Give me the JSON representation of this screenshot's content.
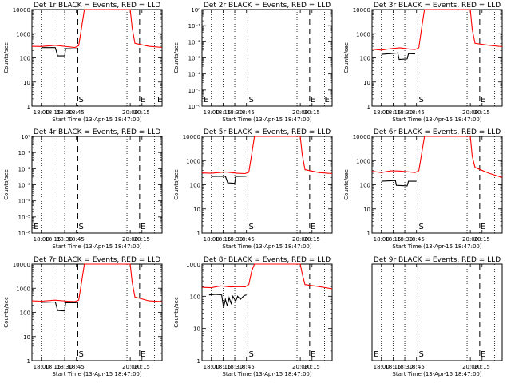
{
  "chart_data": [
    {
      "type": "line",
      "title": "Det 1r BLACK = Events, RED = LLD",
      "xlabel": "Start Time (13-Apr-15 18:47:00)",
      "ylabel": "Counts/sec",
      "yscale": "log",
      "ylim": [
        1,
        10000
      ],
      "xlim": [
        17.8,
        20.58
      ],
      "ytick_labels": [
        "1",
        "10",
        "100",
        "1000",
        "10000"
      ],
      "xtick_labels": [
        "18:00",
        "18:15",
        "18:30",
        "18:45",
        "20:00",
        "20:15"
      ],
      "dotted_x": [
        18.0,
        18.25,
        18.5,
        19.83,
        20.42
      ],
      "markers": [
        {
          "label": "S",
          "x": 18.78
        },
        {
          "label": "E",
          "x": 20.1
        },
        {
          "label": "E",
          "x": 20.58
        }
      ],
      "series": [
        {
          "color": "#000000",
          "points": [
            [
              17.8,
              null
            ],
            [
              18.0,
              265
            ],
            [
              18.3,
              265
            ],
            [
              18.35,
              120
            ],
            [
              18.5,
              120
            ],
            [
              18.52,
              240
            ],
            [
              18.72,
              235
            ],
            [
              18.78,
              240
            ]
          ]
        },
        {
          "color": "#ff0000",
          "points": [
            [
              17.8,
              300
            ],
            [
              18.0,
              295
            ],
            [
              18.3,
              330
            ],
            [
              18.55,
              290
            ],
            [
              18.72,
              270
            ],
            [
              18.8,
              320
            ],
            [
              18.86,
              1800
            ],
            [
              18.92,
              10000
            ],
            [
              19.9,
              10000
            ],
            [
              19.94,
              1800
            ],
            [
              20.0,
              400
            ],
            [
              20.3,
              300
            ],
            [
              20.58,
              270
            ]
          ]
        }
      ]
    },
    {
      "type": "line",
      "title": "Det 2r BLACK = Events, RED = LLD",
      "xlabel": "Start Time (13-Apr-15 18:47:00)",
      "ylabel": "Counts/sec",
      "yscale": "log",
      "ylim": [
        1e-06,
        1
      ],
      "ytick_labels": [
        "10⁻⁶",
        "10⁻⁵",
        "10⁻⁴",
        "10⁻³",
        "10⁻²",
        "10⁻¹",
        "10⁰"
      ],
      "xtick_labels": [
        "18:00",
        "18:15",
        "18:30",
        "18:45",
        "20:00",
        "20:15"
      ],
      "markers": [
        {
          "label": "E",
          "x": 17.82
        },
        {
          "label": "S",
          "x": 18.78
        },
        {
          "label": "E",
          "x": 20.1
        },
        {
          "label": "E",
          "x": 20.4
        }
      ],
      "series": []
    },
    {
      "type": "line",
      "title": "Det 3r BLACK = Events, RED = LLD",
      "xlabel": "Start Time (13-Apr-15 18:47:00)",
      "ylabel": "Counts/sec",
      "yscale": "log",
      "ylim": [
        1,
        10000
      ],
      "ytick_labels": [
        "1",
        "10",
        "100",
        "1000",
        "10000"
      ],
      "xtick_labels": [
        "18:00",
        "18:15",
        "18:30",
        "18:45",
        "20:00",
        "20:15"
      ],
      "markers": [
        {
          "label": "S",
          "x": 18.78
        },
        {
          "label": "E",
          "x": 20.1
        }
      ],
      "series": [
        {
          "color": "#000000",
          "points": [
            [
              17.8,
              null
            ],
            [
              18.0,
              140
            ],
            [
              18.2,
              150
            ],
            [
              18.35,
              160
            ],
            [
              18.38,
              85
            ],
            [
              18.55,
              90
            ],
            [
              18.58,
              150
            ],
            [
              18.72,
              145
            ]
          ]
        },
        {
          "color": "#ff0000",
          "points": [
            [
              17.8,
              230
            ],
            [
              18.0,
              210
            ],
            [
              18.2,
              240
            ],
            [
              18.4,
              260
            ],
            [
              18.6,
              230
            ],
            [
              18.72,
              220
            ],
            [
              18.8,
              260
            ],
            [
              18.86,
              1800
            ],
            [
              18.92,
              10000
            ],
            [
              19.9,
              10000
            ],
            [
              19.94,
              1500
            ],
            [
              20.0,
              400
            ],
            [
              20.3,
              330
            ],
            [
              20.58,
              290
            ]
          ]
        }
      ]
    },
    {
      "type": "line",
      "title": "Det 4r BLACK = Events, RED = LLD",
      "xlabel": "Start Time (13-Apr-15 18:47:00)",
      "ylabel": "Counts/sec",
      "yscale": "log",
      "ylim": [
        1e-06,
        1
      ],
      "ytick_labels": [
        "10⁻⁶",
        "10⁻⁵",
        "10⁻⁴",
        "10⁻³",
        "10⁻²",
        "10⁻¹",
        "10⁰"
      ],
      "xtick_labels": [
        "18:00",
        "18:15",
        "18:30",
        "18:45",
        "20:00",
        "20:15"
      ],
      "markers": [
        {
          "label": "E",
          "x": 17.82
        },
        {
          "label": "S",
          "x": 18.78
        },
        {
          "label": "E",
          "x": 20.1
        }
      ],
      "series": []
    },
    {
      "type": "line",
      "title": "Det 5r BLACK = Events, RED = LLD",
      "xlabel": "Start Time (13-Apr-15 18:47:00)",
      "ylabel": "Counts/sec",
      "yscale": "log",
      "ylim": [
        1,
        10000
      ],
      "ytick_labels": [
        "1",
        "10",
        "100",
        "1000",
        "10000"
      ],
      "xtick_labels": [
        "18:00",
        "18:15",
        "18:30",
        "18:45",
        "20:00",
        "20:15"
      ],
      "markers": [
        {
          "label": "S",
          "x": 18.78
        },
        {
          "label": "E",
          "x": 20.1
        }
      ],
      "series": [
        {
          "color": "#000000",
          "points": [
            [
              17.8,
              null
            ],
            [
              18.0,
              220
            ],
            [
              18.3,
              225
            ],
            [
              18.35,
              120
            ],
            [
              18.5,
              115
            ],
            [
              18.52,
              220
            ],
            [
              18.75,
              225
            ]
          ]
        },
        {
          "color": "#ff0000",
          "points": [
            [
              17.8,
              310
            ],
            [
              18.0,
              300
            ],
            [
              18.3,
              340
            ],
            [
              18.55,
              300
            ],
            [
              18.72,
              290
            ],
            [
              18.8,
              330
            ],
            [
              18.86,
              1800
            ],
            [
              18.92,
              10000
            ],
            [
              19.9,
              10000
            ],
            [
              19.94,
              1800
            ],
            [
              20.0,
              420
            ],
            [
              20.3,
              320
            ],
            [
              20.58,
              290
            ]
          ]
        }
      ]
    },
    {
      "type": "line",
      "title": "Det 6r BLACK = Events, RED = LLD",
      "xlabel": "Start Time (13-Apr-15 18:47:00)",
      "ylabel": "Counts/sec",
      "yscale": "log",
      "ylim": [
        1,
        10000
      ],
      "ytick_labels": [
        "1",
        "10",
        "100",
        "1000",
        "10000"
      ],
      "xtick_labels": [
        "18:00",
        "18:15",
        "18:30",
        "18:45",
        "20:00",
        "20:15"
      ],
      "markers": [
        {
          "label": "S",
          "x": 18.78
        },
        {
          "label": "E",
          "x": 20.1
        }
      ],
      "series": [
        {
          "color": "#000000",
          "points": [
            [
              17.8,
              null
            ],
            [
              18.0,
              140
            ],
            [
              18.3,
              150
            ],
            [
              18.32,
              95
            ],
            [
              18.55,
              90
            ],
            [
              18.58,
              140
            ],
            [
              18.75,
              140
            ]
          ]
        },
        {
          "color": "#ff0000",
          "points": [
            [
              17.8,
              360
            ],
            [
              18.0,
              320
            ],
            [
              18.2,
              380
            ],
            [
              18.4,
              370
            ],
            [
              18.6,
              340
            ],
            [
              18.72,
              320
            ],
            [
              18.8,
              380
            ],
            [
              18.86,
              2000
            ],
            [
              18.92,
              10000
            ],
            [
              19.9,
              10000
            ],
            [
              19.94,
              1500
            ],
            [
              20.0,
              520
            ],
            [
              20.3,
              300
            ],
            [
              20.58,
              200
            ]
          ]
        }
      ]
    },
    {
      "type": "line",
      "title": "Det 7r BLACK = Events, RED = LLD",
      "xlabel": "Start Time (13-Apr-15 18:47:00)",
      "ylabel": "Counts/sec",
      "yscale": "log",
      "ylim": [
        1,
        10000
      ],
      "ytick_labels": [
        "1",
        "10",
        "100",
        "1000",
        "10000"
      ],
      "xtick_labels": [
        "18:00",
        "18:15",
        "18:30",
        "18:45",
        "20:00",
        "20:15"
      ],
      "markers": [
        {
          "label": "S",
          "x": 18.78
        },
        {
          "label": "E",
          "x": 20.1
        }
      ],
      "series": [
        {
          "color": "#000000",
          "points": [
            [
              17.8,
              null
            ],
            [
              18.0,
              260
            ],
            [
              18.3,
              270
            ],
            [
              18.35,
              120
            ],
            [
              18.5,
              115
            ],
            [
              18.52,
              250
            ],
            [
              18.75,
              250
            ]
          ]
        },
        {
          "color": "#ff0000",
          "points": [
            [
              17.8,
              300
            ],
            [
              18.0,
              290
            ],
            [
              18.3,
              320
            ],
            [
              18.55,
              290
            ],
            [
              18.72,
              280
            ],
            [
              18.8,
              320
            ],
            [
              18.86,
              1800
            ],
            [
              18.92,
              10000
            ],
            [
              19.9,
              10000
            ],
            [
              19.94,
              1800
            ],
            [
              20.0,
              430
            ],
            [
              20.3,
              300
            ],
            [
              20.58,
              280
            ]
          ]
        }
      ]
    },
    {
      "type": "line",
      "title": "Det 8r BLACK = Events, RED = LLD",
      "xlabel": "Start Time (13-Apr-15 18:47:00)",
      "ylabel": "Counts/sec",
      "yscale": "log",
      "ylim": [
        1,
        1000
      ],
      "ytick_labels": [
        "1",
        "10",
        "100",
        "1000"
      ],
      "xtick_labels": [
        "18:00",
        "18:15",
        "18:30",
        "18:45",
        "20:00",
        "20:15"
      ],
      "markers": [
        {
          "label": "S",
          "x": 18.78
        },
        {
          "label": "E",
          "x": 20.1
        }
      ],
      "series": [
        {
          "color": "#000000",
          "points": [
            [
              17.8,
              null
            ],
            [
              17.95,
              110
            ],
            [
              18.1,
              115
            ],
            [
              18.22,
              110
            ],
            [
              18.26,
              45
            ],
            [
              18.3,
              80
            ],
            [
              18.34,
              50
            ],
            [
              18.38,
              90
            ],
            [
              18.42,
              60
            ],
            [
              18.46,
              100
            ],
            [
              18.52,
              70
            ],
            [
              18.56,
              100
            ],
            [
              18.62,
              80
            ],
            [
              18.7,
              105
            ],
            [
              18.75,
              110
            ]
          ]
        },
        {
          "color": "#ff0000",
          "points": [
            [
              17.8,
              190
            ],
            [
              18.0,
              185
            ],
            [
              18.2,
              210
            ],
            [
              18.4,
              195
            ],
            [
              18.6,
              200
            ],
            [
              18.72,
              195
            ],
            [
              18.8,
              230
            ],
            [
              18.86,
              600
            ],
            [
              18.92,
              1000
            ],
            [
              19.9,
              1000
            ],
            [
              19.94,
              500
            ],
            [
              20.0,
              230
            ],
            [
              20.3,
              200
            ],
            [
              20.58,
              170
            ]
          ]
        }
      ]
    },
    {
      "type": "line",
      "title": "Det 9r BLACK = Events, RED = LLD",
      "xlabel": "Start Time (13-Apr-15 18:47:00)",
      "ylabel": "",
      "yscale": "log",
      "ylim": [
        1,
        10
      ],
      "ytick_labels": [],
      "xtick_labels": [
        "18:00",
        "18:15",
        "18:30",
        "18:45",
        "20:00",
        "20:15"
      ],
      "markers": [
        {
          "label": "E",
          "x": 17.82
        },
        {
          "label": "S",
          "x": 18.78
        },
        {
          "label": "E",
          "x": 20.1
        }
      ],
      "series": []
    }
  ]
}
